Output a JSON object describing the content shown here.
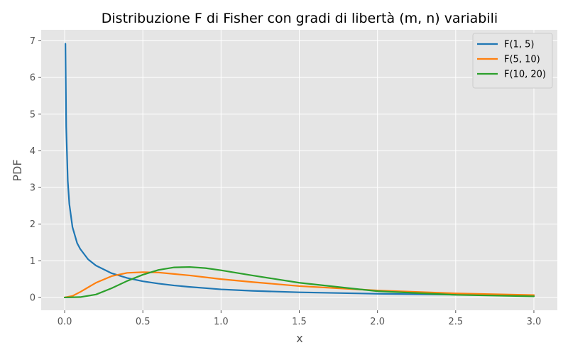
{
  "chart_data": {
    "type": "line",
    "title": "Distribuzione F di Fisher con gradi di libertà (m, n) variabili",
    "xlabel": "x",
    "ylabel": "PDF",
    "xlim": [
      -0.15,
      3.15
    ],
    "ylim": [
      -0.35,
      7.3
    ],
    "xticks": [
      "0.0",
      "0.5",
      "1.0",
      "1.5",
      "2.0",
      "2.5",
      "3.0"
    ],
    "yticks": [
      "0",
      "1",
      "2",
      "3",
      "4",
      "5",
      "6",
      "7"
    ],
    "grid": true,
    "legend_position": "top-right",
    "series": [
      {
        "name": "F(1, 5)",
        "color": "#1f77b4",
        "points": [
          [
            0.005,
            6.92
          ],
          [
            0.01,
            4.66
          ],
          [
            0.02,
            3.18
          ],
          [
            0.03,
            2.55
          ],
          [
            0.05,
            1.92
          ],
          [
            0.08,
            1.48
          ],
          [
            0.1,
            1.32
          ],
          [
            0.15,
            1.04
          ],
          [
            0.2,
            0.87
          ],
          [
            0.3,
            0.66
          ],
          [
            0.4,
            0.53
          ],
          [
            0.5,
            0.44
          ],
          [
            0.6,
            0.377
          ],
          [
            0.7,
            0.327
          ],
          [
            0.8,
            0.287
          ],
          [
            0.9,
            0.254
          ],
          [
            1.0,
            0.22
          ],
          [
            1.2,
            0.18
          ],
          [
            1.5,
            0.14
          ],
          [
            2.0,
            0.1
          ],
          [
            2.5,
            0.075
          ],
          [
            3.0,
            0.06
          ]
        ]
      },
      {
        "name": "F(5, 10)",
        "color": "#ff7f0e",
        "points": [
          [
            0.0,
            0.0
          ],
          [
            0.05,
            0.04
          ],
          [
            0.1,
            0.15
          ],
          [
            0.2,
            0.4
          ],
          [
            0.3,
            0.58
          ],
          [
            0.4,
            0.67
          ],
          [
            0.5,
            0.69
          ],
          [
            0.6,
            0.68
          ],
          [
            0.7,
            0.64
          ],
          [
            0.8,
            0.6
          ],
          [
            1.0,
            0.5
          ],
          [
            1.2,
            0.42
          ],
          [
            1.5,
            0.31
          ],
          [
            2.0,
            0.19
          ],
          [
            2.5,
            0.11
          ],
          [
            3.0,
            0.065
          ]
        ]
      },
      {
        "name": "F(10, 20)",
        "color": "#2ca02c",
        "points": [
          [
            0.0,
            0.0
          ],
          [
            0.1,
            0.01
          ],
          [
            0.2,
            0.08
          ],
          [
            0.3,
            0.25
          ],
          [
            0.4,
            0.45
          ],
          [
            0.5,
            0.62
          ],
          [
            0.6,
            0.75
          ],
          [
            0.7,
            0.82
          ],
          [
            0.8,
            0.83
          ],
          [
            0.9,
            0.8
          ],
          [
            1.0,
            0.74
          ],
          [
            1.2,
            0.6
          ],
          [
            1.5,
            0.4
          ],
          [
            2.0,
            0.17
          ],
          [
            2.5,
            0.07
          ],
          [
            3.0,
            0.03
          ]
        ]
      }
    ]
  }
}
